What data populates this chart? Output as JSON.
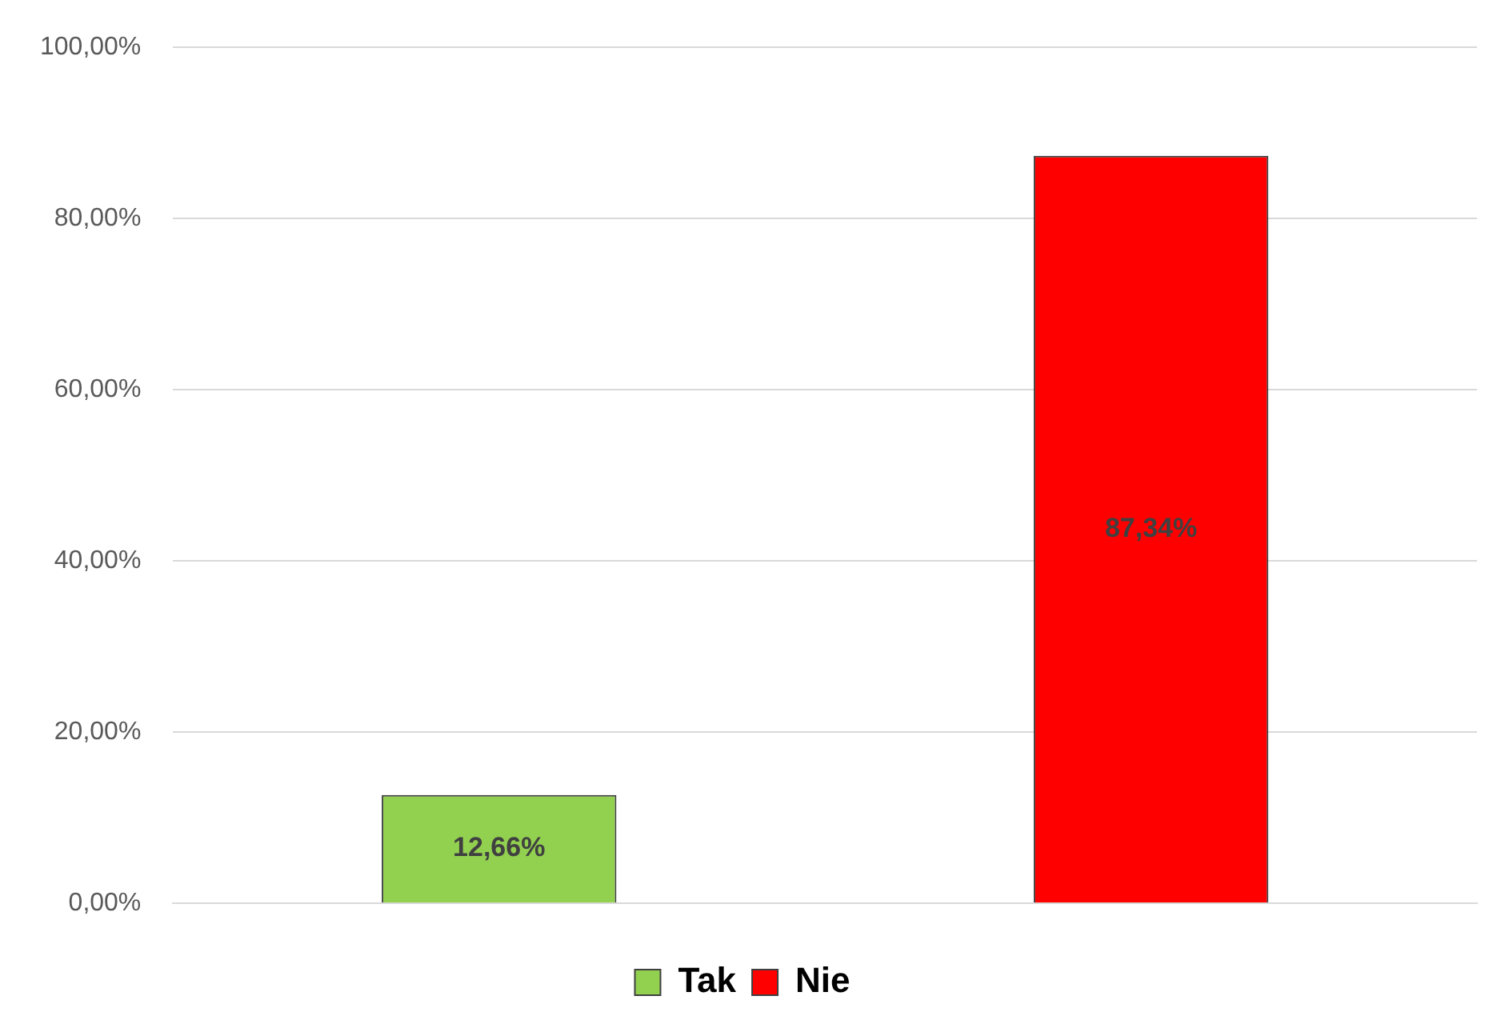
{
  "chart_data": {
    "type": "bar",
    "categories": [
      null,
      null
    ],
    "series": [
      {
        "name": "Tak",
        "color": "#92d050",
        "values": [
          12.66,
          null
        ],
        "value_labels": [
          "12,66%",
          null
        ]
      },
      {
        "name": "Nie",
        "color": "#ff0000",
        "values": [
          null,
          87.34
        ],
        "value_labels": [
          null,
          "87,34%"
        ]
      }
    ],
    "ylim": [
      0,
      100
    ],
    "yticks": [
      {
        "value": 0,
        "label": "0,00%"
      },
      {
        "value": 20,
        "label": "20,00%"
      },
      {
        "value": 40,
        "label": "40,00%"
      },
      {
        "value": 60,
        "label": "60,00%"
      },
      {
        "value": 80,
        "label": "80,00%"
      },
      {
        "value": 100,
        "label": "100,00%"
      }
    ],
    "grid": "y",
    "legend": "bottom"
  }
}
